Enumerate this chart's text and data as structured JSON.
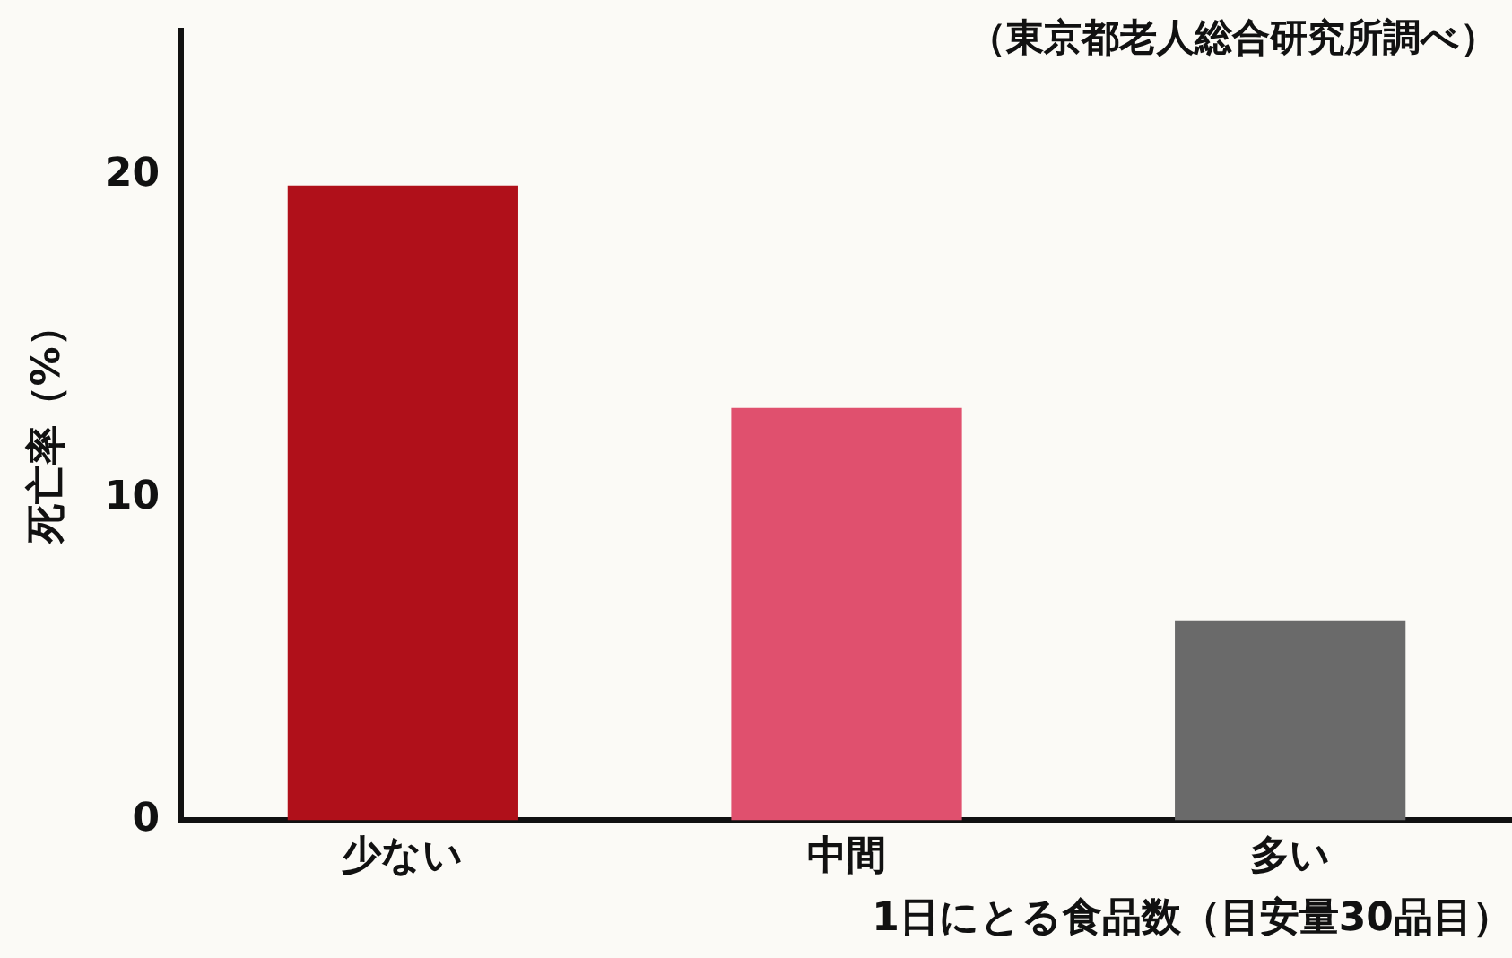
{
  "chart_data": {
    "type": "bar",
    "categories": [
      "少ない",
      "中間",
      "多い"
    ],
    "values": [
      19.7,
      12.8,
      6.2
    ],
    "colors": [
      "#b0101a",
      "#e0506e",
      "#6a6a6a"
    ],
    "ylim": [
      0,
      24.5
    ],
    "yticks": [
      0,
      10,
      20
    ],
    "ylabel": "死亡率（%）",
    "xlabel": "1日にとる食品数（目安量30品目）",
    "grid": false,
    "legend": false,
    "annotations": [
      "（東京都老人総合研究所調べ）"
    ]
  }
}
